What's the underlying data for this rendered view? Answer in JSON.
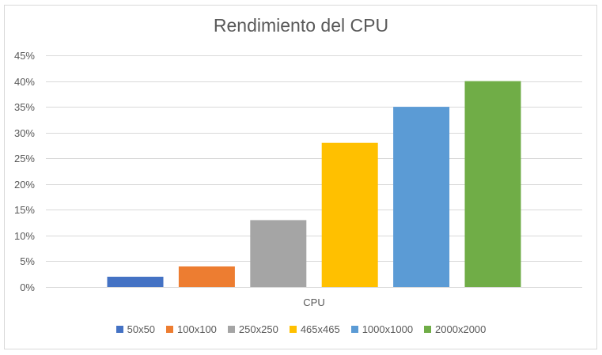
{
  "chart_data": {
    "type": "bar",
    "title": "Rendimiento del CPU",
    "categories": [
      "CPU"
    ],
    "series": [
      {
        "name": "50x50",
        "values": [
          2
        ],
        "color": "#4472c4"
      },
      {
        "name": "100x100",
        "values": [
          4
        ],
        "color": "#ed7d31"
      },
      {
        "name": "250x250",
        "values": [
          13
        ],
        "color": "#a5a5a5"
      },
      {
        "name": "465x465",
        "values": [
          28
        ],
        "color": "#ffc000"
      },
      {
        "name": "1000x1000",
        "values": [
          35
        ],
        "color": "#5b9bd5"
      },
      {
        "name": "2000x2000",
        "values": [
          40
        ],
        "color": "#70ad47"
      }
    ],
    "y_ticks": [
      "0%",
      "5%",
      "10%",
      "15%",
      "20%",
      "25%",
      "30%",
      "35%",
      "40%",
      "45%"
    ],
    "ylim": [
      0,
      45
    ],
    "y_unit": "percent",
    "grid": true,
    "legend_position": "bottom",
    "gridline_color": "#d9d9d9"
  }
}
